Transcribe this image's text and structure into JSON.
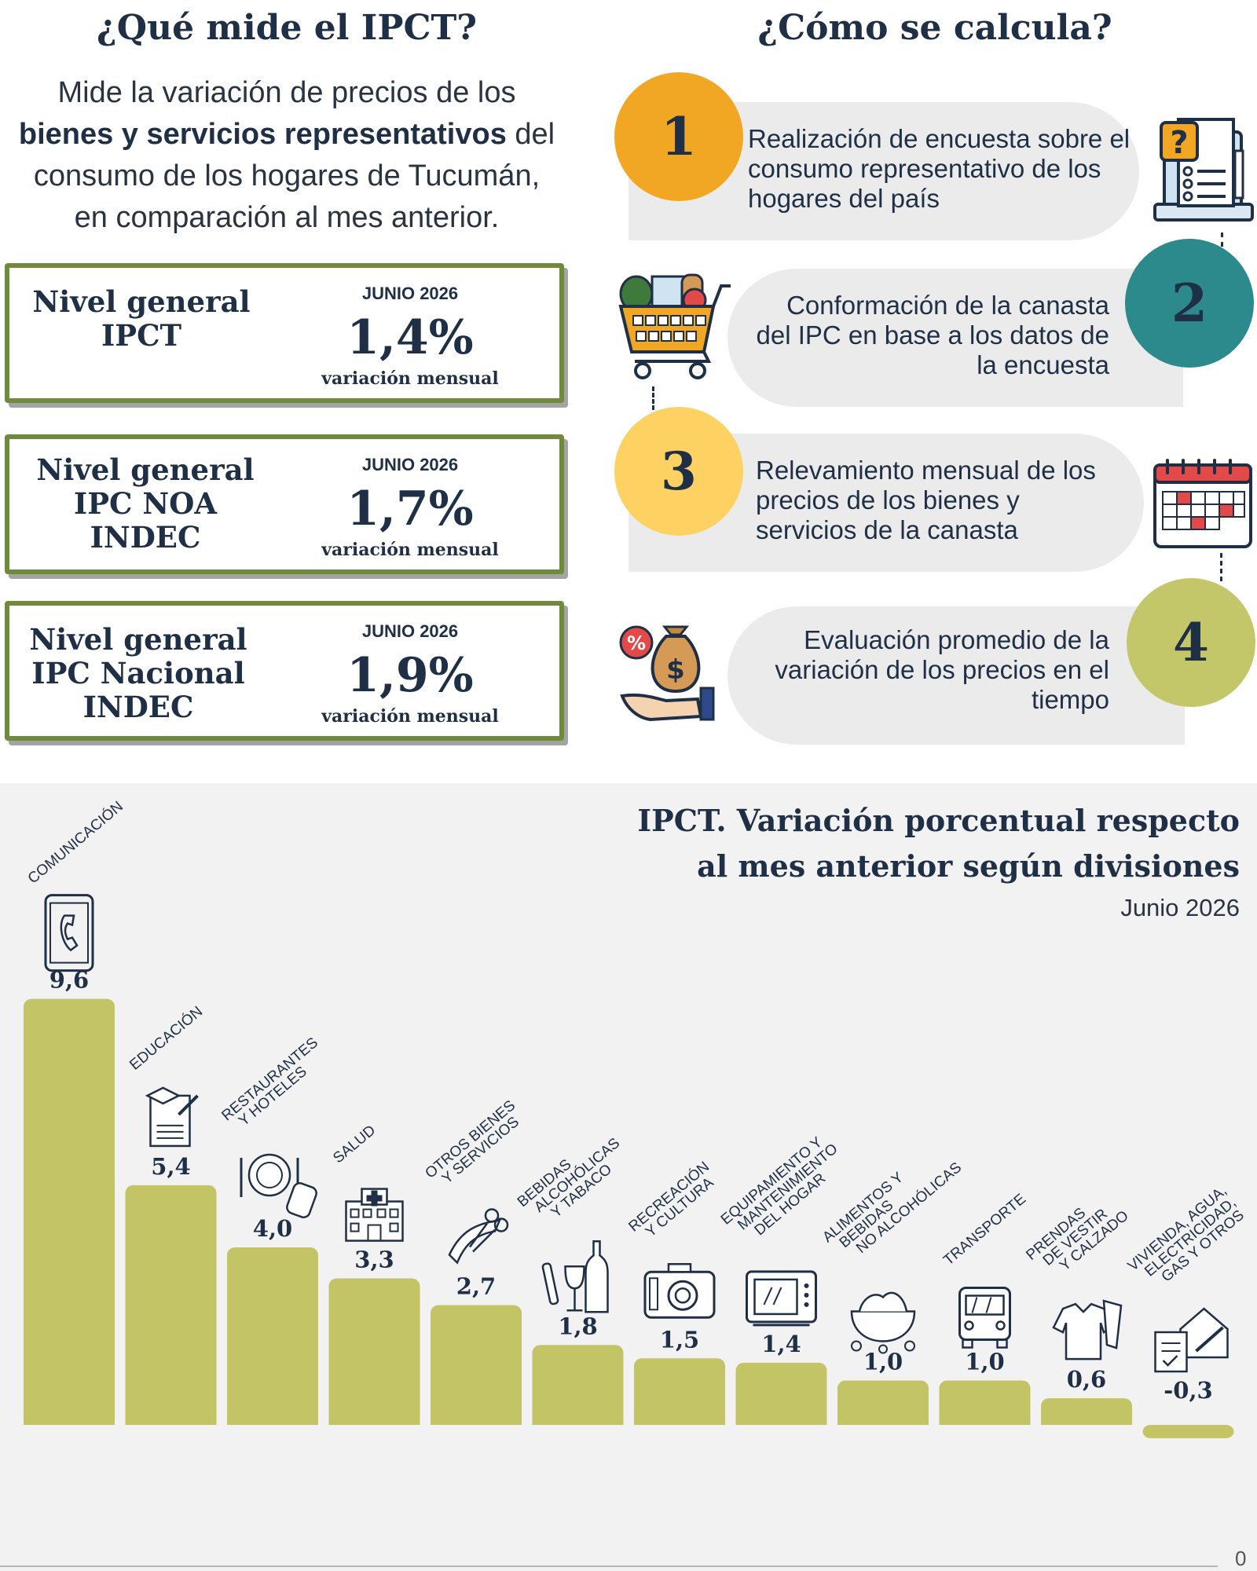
{
  "left": {
    "title": "¿Qué mide el IPCT?",
    "intro_1": "Mide la variación de precios de los",
    "intro_bold": "bienes y servicios representativos",
    "intro_2": " del",
    "intro_3": "consumo de los hogares de Tucumán,",
    "intro_4": "en comparación al mes anterior.",
    "kpis": [
      {
        "name": "Nivel general IPCT",
        "month": "JUNIO 2026",
        "value": "1,4%",
        "sub": "variación mensual"
      },
      {
        "name": "Nivel general IPC NOA INDEC",
        "month": "JUNIO 2026",
        "value": "1,7%",
        "sub": "variación mensual"
      },
      {
        "name": "Nivel general IPC Nacional INDEC",
        "month": "JUNIO 2026",
        "value": "1,9%",
        "sub": "variación mensual"
      }
    ]
  },
  "right": {
    "title": "¿Cómo se calcula?",
    "steps": [
      {
        "number": "1",
        "text": "Realización de encuesta sobre el consumo representativo de los hogares del país",
        "icon": "survey-laptop-icon",
        "color": "#f2a724"
      },
      {
        "number": "2",
        "text": "Conformación de la canasta del IPC en base a los datos de la encuesta",
        "icon": "shopping-cart-icon",
        "color": "#2d8a8c"
      },
      {
        "number": "3",
        "text": "Relevamiento mensual de los precios de los bienes y servicios de la canasta",
        "icon": "calendar-icon",
        "color": "#fdd262"
      },
      {
        "number": "4",
        "text": "Evaluación promedio de la variación de los precios en el tiempo",
        "icon": "money-bag-hand-icon",
        "color": "#c4c66a"
      }
    ]
  },
  "chart_data": {
    "type": "bar",
    "title": "IPCT. Variación porcentual respecto al mes anterior según divisiones",
    "subtitle": "Junio 2026",
    "categories": [
      "COMUNICACIÓN",
      "EDUCACIÓN",
      "RESTAURANTES Y HOTELES",
      "SALUD",
      "OTROS BIENES Y SERVICIOS",
      "BEBIDAS ALCOHÓLICAS Y TABACO",
      "RECREACIÓN Y CULTURA",
      "EQUIPAMIENTO Y MANTENIMIENTO DEL HOGAR",
      "ALIMENTOS Y BEBIDAS NO ALCOHÓLICAS",
      "TRANSPORTE",
      "PRENDAS DE VESTIR Y CALZADO",
      "VIVIENDA, AGUA, ELECTRICIDAD, GAS Y OTROS"
    ],
    "category_lines": [
      [
        "COMUNICACIÓN"
      ],
      [
        "EDUCACIÓN"
      ],
      [
        "RESTAURANTES",
        "Y HOTELES"
      ],
      [
        "SALUD"
      ],
      [
        "OTROS BIENES",
        "Y SERVICIOS"
      ],
      [
        "BEBIDAS",
        "ALCOHÓLICAS",
        "Y TABACO"
      ],
      [
        "RECREACIÓN",
        "Y CULTURA"
      ],
      [
        "EQUIPAMIENTO Y",
        "MANTENIMIENTO",
        "DEL HOGAR"
      ],
      [
        "ALIMENTOS Y",
        "BEBIDAS",
        "NO ALCOHÓLICAS"
      ],
      [
        "TRANSPORTE"
      ],
      [
        "PRENDAS",
        "DE VESTIR",
        "Y CALZADO"
      ],
      [
        "VIVIENDA, AGUA,",
        "ELECTRICIDAD,",
        "GAS Y OTROS"
      ]
    ],
    "values": [
      9.6,
      5.4,
      4.0,
      3.3,
      2.7,
      1.8,
      1.5,
      1.4,
      1.0,
      1.0,
      0.6,
      -0.3
    ],
    "value_labels": [
      "9,6",
      "5,4",
      "4,0",
      "3,3",
      "2,7",
      "1,8",
      "1,5",
      "1,4",
      "1,0",
      "1,0",
      "0,6",
      "-0,3"
    ],
    "icons": [
      "phone-icon",
      "education-certificate-icon",
      "restaurant-icon",
      "hospital-icon",
      "ribbon-scissors-icon",
      "wine-bottle-icon",
      "camera-icon",
      "microwave-icon",
      "food-bowl-icon",
      "bus-icon",
      "clothing-icon",
      "house-document-icon"
    ],
    "zero_label": "0",
    "bar_color": "#c2c466",
    "grid": false
  }
}
